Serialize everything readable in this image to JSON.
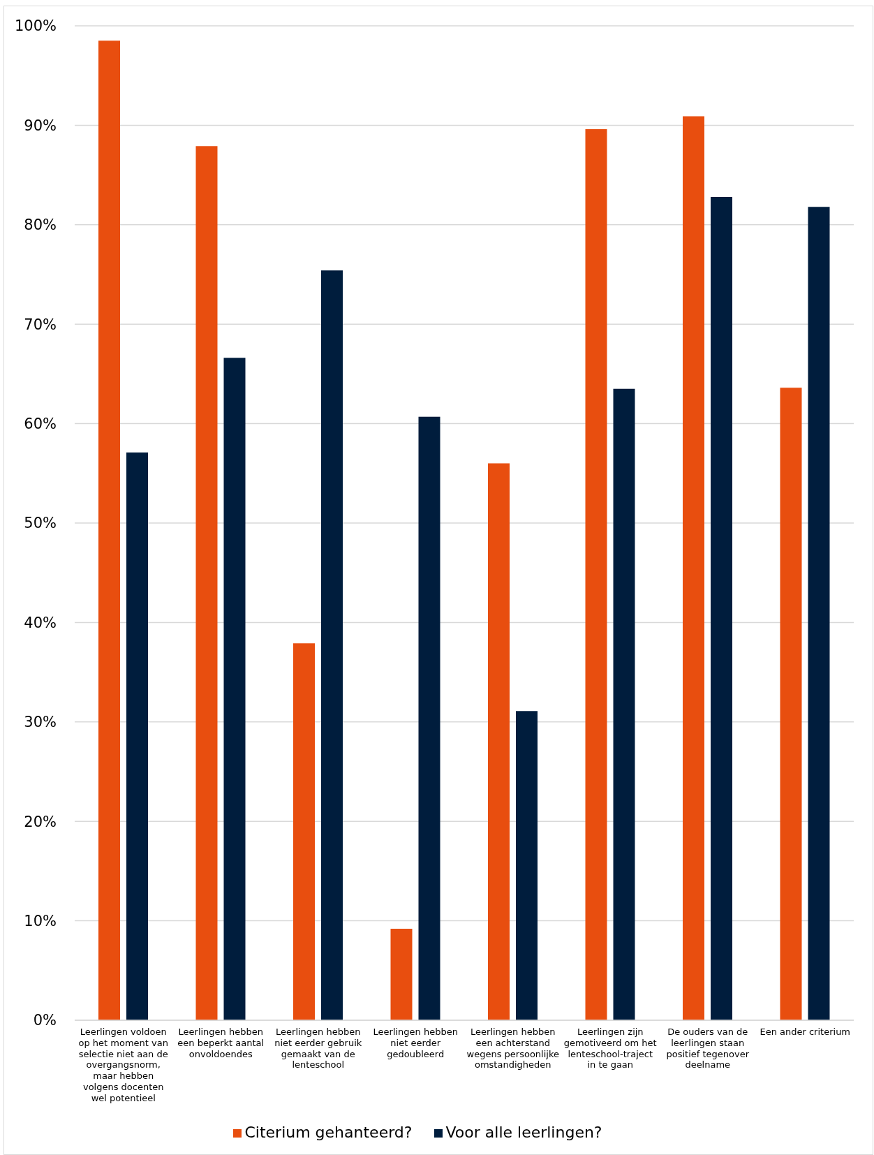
{
  "chart_data": {
    "type": "bar",
    "categories": [
      "Leerlingen voldoen op het moment van selectie niet aan de overgangsnorm, maar hebben volgens docenten wel potentieel",
      "Leerlingen hebben een beperkt aantal onvoldoendes",
      "Leerlingen hebben niet eerder gebruik gemaakt van de lenteschool",
      "Leerlingen hebben niet eerder gedoubleerd",
      "Leerlingen hebben een achterstand wegens persoonlijke omstandigheden",
      "Leerlingen zijn gemotiveerd om het lenteschool-traject in te gaan",
      "De ouders van de leerlingen staan positief tegenover deelname",
      "Een ander criterium"
    ],
    "series": [
      {
        "name": "Citerium gehanteerd?",
        "color": "#e84e0f",
        "values": [
          98.5,
          87.9,
          37.9,
          9.2,
          56.0,
          89.6,
          90.9,
          63.6
        ]
      },
      {
        "name": "Voor alle leerlingen?",
        "color": "#001d3d",
        "values": [
          57.1,
          66.6,
          75.4,
          60.7,
          31.1,
          63.5,
          82.8,
          81.8
        ]
      }
    ],
    "ylim": [
      0,
      100
    ],
    "yticks": [
      {
        "value": 0,
        "label": "0%"
      },
      {
        "value": 10,
        "label": "10%"
      },
      {
        "value": 20,
        "label": "20%"
      },
      {
        "value": 30,
        "label": "30%"
      },
      {
        "value": 40,
        "label": "40%"
      },
      {
        "value": 50,
        "label": "50%"
      },
      {
        "value": 60,
        "label": "60%"
      },
      {
        "value": 70,
        "label": "70%"
      },
      {
        "value": 80,
        "label": "80%"
      },
      {
        "value": 90,
        "label": "90%"
      },
      {
        "value": 100,
        "label": "100%"
      }
    ],
    "grid": "y",
    "legend": "bottom"
  }
}
